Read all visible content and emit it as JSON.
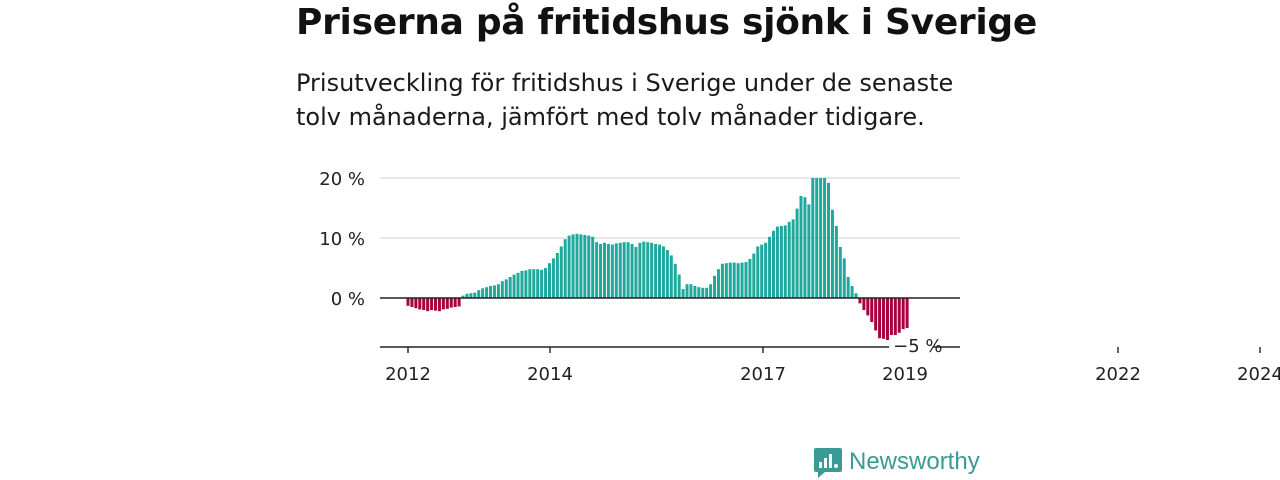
{
  "header": {
    "title": "Priserna på fritidshus sjönk i Sverige",
    "subtitle": "Prisutveckling för fritidshus i Sverige under de senaste tolv månaderna, jämfört med tolv månader tidigare."
  },
  "brand": {
    "name": "Newsworthy",
    "icon": "newsworthy-logo-icon",
    "color": "#3a9a94"
  },
  "colors": {
    "positive": "#1fa89c",
    "negative": "#a8003d",
    "grid": "#d9d9d9",
    "axis": "#222222"
  },
  "chart_data": {
    "type": "bar",
    "title": "Priserna på fritidshus sjönk i Sverige",
    "xlabel": "",
    "ylabel": "",
    "ylim": [
      -8,
      20
    ],
    "y_ticks": [
      {
        "value": 0,
        "label": "0 %"
      },
      {
        "value": 10,
        "label": "10 %"
      },
      {
        "value": 20,
        "label": "20 %"
      }
    ],
    "x_ticks": [
      {
        "value": 2012,
        "label": "2012"
      },
      {
        "value": 2014,
        "label": "2014"
      },
      {
        "value": 2017,
        "label": "2017"
      },
      {
        "value": 2019,
        "label": "2019"
      },
      {
        "value": 2022,
        "label": "2022"
      },
      {
        "value": 2024,
        "label": "2024"
      }
    ],
    "last_value_label": "−5 %",
    "grid": true,
    "x_start": 2012.0,
    "x_step": 0.0833,
    "values": [
      -1.3,
      -1.5,
      -1.7,
      -1.9,
      -2.0,
      -2.2,
      -2.0,
      -2.1,
      -2.2,
      -1.9,
      -1.8,
      -1.6,
      -1.5,
      -1.4,
      0.4,
      0.7,
      0.8,
      0.9,
      1.3,
      1.6,
      1.8,
      2.0,
      2.1,
      2.3,
      2.8,
      3.1,
      3.5,
      3.9,
      4.2,
      4.5,
      4.6,
      4.8,
      4.8,
      4.8,
      4.7,
      5.0,
      5.8,
      6.6,
      7.5,
      8.6,
      9.8,
      10.4,
      10.6,
      10.7,
      10.6,
      10.5,
      10.4,
      10.2,
      9.3,
      9.0,
      9.2,
      9.0,
      8.9,
      9.1,
      9.2,
      9.3,
      9.3,
      9.0,
      8.5,
      9.2,
      9.4,
      9.3,
      9.2,
      9.0,
      8.9,
      8.6,
      8.0,
      7.1,
      5.7,
      3.9,
      1.5,
      2.3,
      2.3,
      2.0,
      1.8,
      1.7,
      1.7,
      2.3,
      3.7,
      4.8,
      5.7,
      5.8,
      5.9,
      5.9,
      5.8,
      5.9,
      6.0,
      6.5,
      7.4,
      8.6,
      8.9,
      9.2,
      10.2,
      11.2,
      11.9,
      12.0,
      12.1,
      12.7,
      13.1,
      14.9,
      17.0,
      16.8,
      15.6,
      20.0,
      20.0,
      20.0,
      20.0,
      19.2,
      14.7,
      12.0,
      8.5,
      6.6,
      3.5,
      2.0,
      0.8,
      -0.9,
      -2.0,
      -2.9,
      -4.0,
      -5.4,
      -6.7,
      -6.8,
      -7.0,
      -6.6,
      -6.3,
      -5.8,
      -5.2,
      -5.0
    ]
  }
}
